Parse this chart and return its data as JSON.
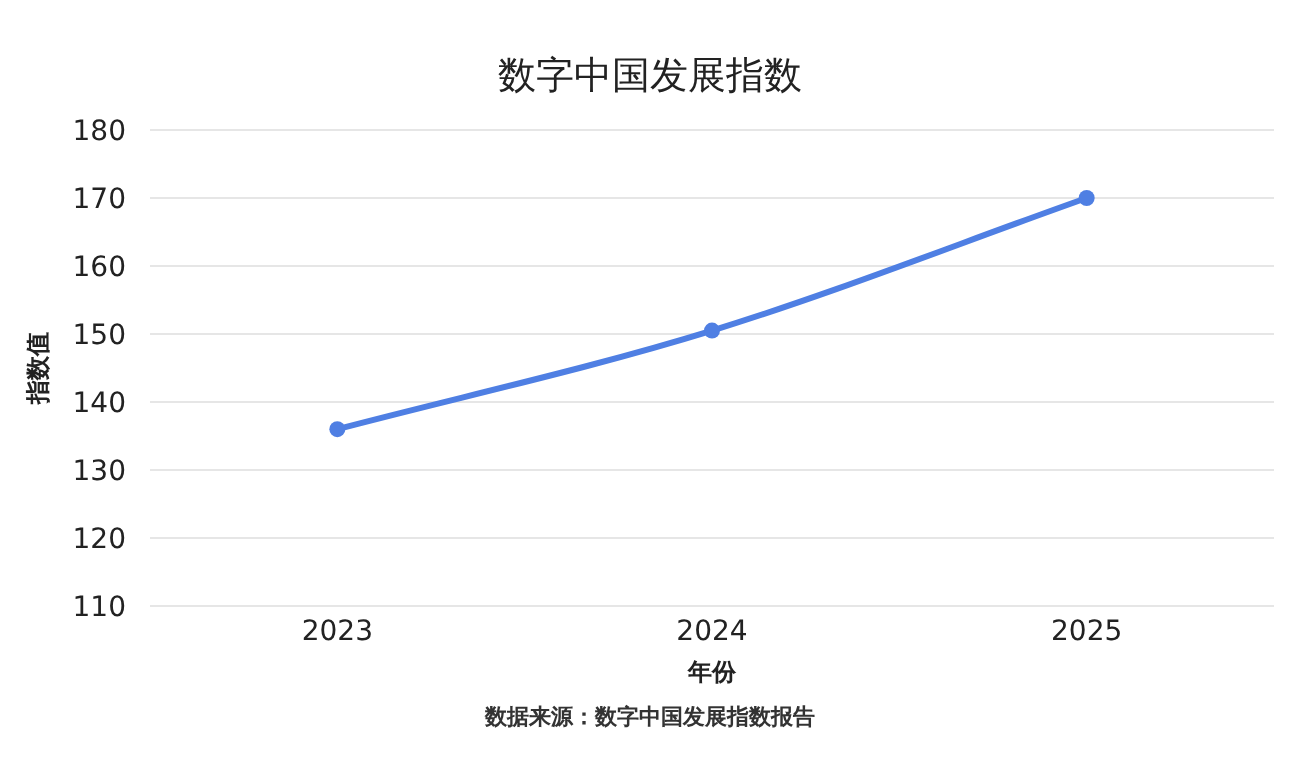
{
  "chart_data": {
    "type": "line",
    "title": "数字中国发展指数",
    "xlabel": "年份",
    "ylabel": "指数值",
    "annotations": [
      "数据来源：数字中国发展指数报告"
    ],
    "categories": [
      "2023",
      "2024",
      "2025"
    ],
    "series": [
      {
        "color": "#4f7fe3",
        "values": [
          136,
          150.5,
          170
        ]
      }
    ],
    "ylim": [
      110,
      180
    ],
    "yticks": [
      110,
      120,
      130,
      140,
      150,
      160,
      170,
      180
    ],
    "grid": "y",
    "marker": "circle",
    "line_style": "solid"
  }
}
